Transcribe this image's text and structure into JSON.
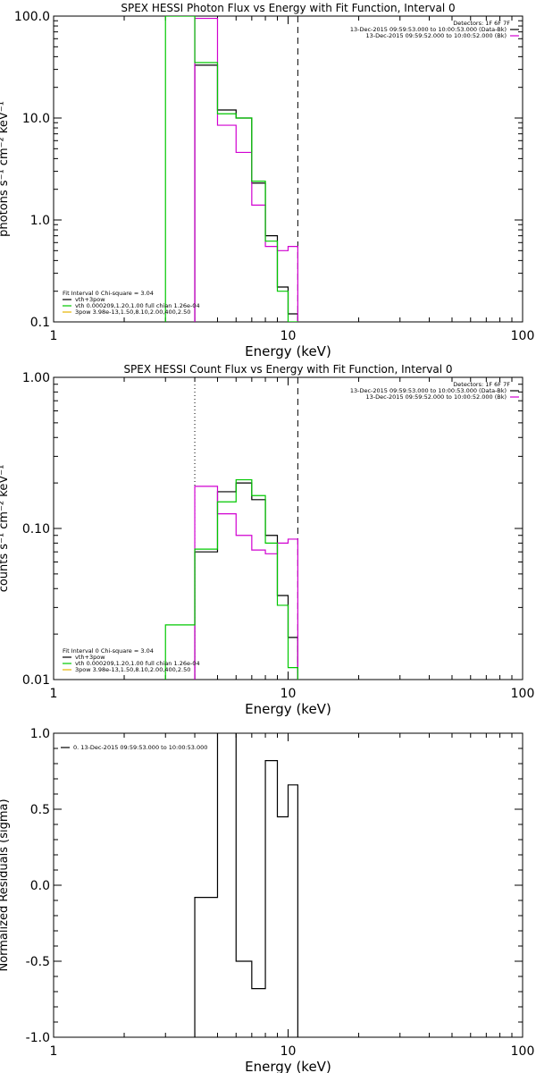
{
  "panels": [
    {
      "title": "SPEX HESSI Photon Flux vs Energy with Fit Function, Interval 0",
      "xlabel": "Energy (keV)",
      "ylabel": "photons s⁻¹ cm⁻² keV⁻¹",
      "xticks": [
        "1",
        "10",
        "100"
      ],
      "yticks": [
        "100.0",
        "10.0",
        "1.0",
        "0.1"
      ],
      "legend_right": {
        "header": "Detectors: 1F 6F 7F",
        "lines": [
          "13-Dec-2015 09:59:53.000 to 10:00:53.000 (Data-Bk)",
          "13-Dec-2015 09:59:52.000 to 10:00:52.000 (Bk)"
        ]
      },
      "legend_left": {
        "header": "Fit Interval 0   Chi-square = 3.04",
        "lines": [
          "vth+3pow",
          "vth 0.000209,1.20,1.00  full chian 1.26e-04",
          "3pow 3.98e-13,1.50,8.10,2.00,400,2.50"
        ]
      }
    },
    {
      "title": "SPEX HESSI Count Flux vs Energy with Fit Function, Interval 0",
      "xlabel": "Energy (keV)",
      "ylabel": "counts s⁻¹ cm⁻² keV⁻¹",
      "xticks": [
        "1",
        "10",
        "100"
      ],
      "yticks": [
        "1.00",
        "0.10",
        "0.01"
      ],
      "legend_right": {
        "header": "Detectors: 1F 6F 7F",
        "lines": [
          "13-Dec-2015 09:59:53.000 to 10:00:53.000 (Data-Bk)",
          "13-Dec-2015 09:59:52.000 to 10:00:52.000 (Bk)"
        ]
      },
      "legend_left": {
        "header": "Fit Interval 0   Chi-square = 3.04",
        "lines": [
          "vth+3pow",
          "vth 0.000209,1.20,1.00  full chian 1.26e-04",
          "3pow 3.98e-13,1.50,8.10,2.00,400,2.50"
        ]
      }
    },
    {
      "title": "",
      "xlabel": "Energy (keV)",
      "ylabel": "Normalized Residuals (sigma)",
      "xticks": [
        "1",
        "10",
        "100"
      ],
      "yticks": [
        "1.0",
        "0.5",
        "0.0",
        "-0.5",
        "-1.0"
      ],
      "legend_right": null,
      "legend_left": null,
      "legend_top": "0. 13-Dec-2015 09:59:53.000 to 10:00:53.000"
    }
  ],
  "colors": {
    "data": "#000000",
    "background": "#d100d1",
    "fit": "#00c800",
    "component": "#e6b400",
    "axis": "#000000"
  },
  "chart_data": [
    {
      "type": "line",
      "title": "SPEX HESSI Photon Flux vs Energy with Fit Function, Interval 0",
      "xlabel": "Energy (keV)",
      "ylabel": "photons s⁻¹ cm⁻² keV⁻¹",
      "xscale": "log",
      "yscale": "log",
      "xlim": [
        1,
        100
      ],
      "ylim": [
        0.1,
        100
      ],
      "energy_edges_keV": [
        3,
        4,
        5,
        6,
        7,
        8,
        9,
        10,
        11
      ],
      "series": [
        {
          "name": "Data-Bk",
          "color": "#000000",
          "values": [
            null,
            33,
            12,
            10,
            2.3,
            0.7,
            0.22,
            0.12
          ]
        },
        {
          "name": "Bk",
          "color": "#d100d1",
          "values": [
            null,
            95,
            8.5,
            4.6,
            1.4,
            0.55,
            0.5,
            0.55
          ]
        },
        {
          "name": "vth+3pow",
          "color": "#00c800",
          "values": [
            100,
            35,
            11,
            10,
            2.4,
            0.62,
            0.2,
            0.1
          ]
        }
      ],
      "vertical_lines_keV": [
        {
          "x": 4,
          "style": "solid",
          "color": "#d100d1"
        },
        {
          "x": 11,
          "style": "dashed",
          "color": "#000000"
        }
      ]
    },
    {
      "type": "line",
      "title": "SPEX HESSI Count Flux vs Energy with Fit Function, Interval 0",
      "xlabel": "Energy (keV)",
      "ylabel": "counts s⁻¹ cm⁻² keV⁻¹",
      "xscale": "log",
      "yscale": "log",
      "xlim": [
        1,
        100
      ],
      "ylim": [
        0.01,
        1
      ],
      "energy_edges_keV": [
        3,
        4,
        5,
        6,
        7,
        8,
        9,
        10,
        11
      ],
      "series": [
        {
          "name": "Data-Bk",
          "color": "#000000",
          "values": [
            null,
            0.07,
            0.175,
            0.2,
            0.155,
            0.09,
            0.036,
            0.019
          ]
        },
        {
          "name": "Bk",
          "color": "#d100d1",
          "values": [
            null,
            0.19,
            0.125,
            0.09,
            0.072,
            0.068,
            0.08,
            0.085
          ]
        },
        {
          "name": "vth+3pow",
          "color": "#00c800",
          "values": [
            0.023,
            0.073,
            0.15,
            0.21,
            0.165,
            0.08,
            0.031,
            0.012
          ]
        }
      ],
      "vertical_lines_keV": [
        {
          "x": 4,
          "style": "dotted",
          "color": "#000000"
        },
        {
          "x": 11,
          "style": "dashed",
          "color": "#000000"
        }
      ]
    },
    {
      "type": "line",
      "xlabel": "Energy (keV)",
      "ylabel": "Normalized Residuals (sigma)",
      "xscale": "log",
      "yscale": "linear",
      "xlim": [
        1,
        100
      ],
      "ylim": [
        -1,
        1
      ],
      "energy_edges_keV": [
        4,
        5,
        6,
        7,
        8,
        9,
        10,
        11
      ],
      "series": [
        {
          "name": "0. 13-Dec-2015 09:59:53.000 to 10:00:53.000",
          "color": "#000000",
          "values": [
            -0.08,
            1.1,
            -0.5,
            -0.68,
            0.82,
            0.45,
            0.66
          ]
        }
      ]
    }
  ]
}
